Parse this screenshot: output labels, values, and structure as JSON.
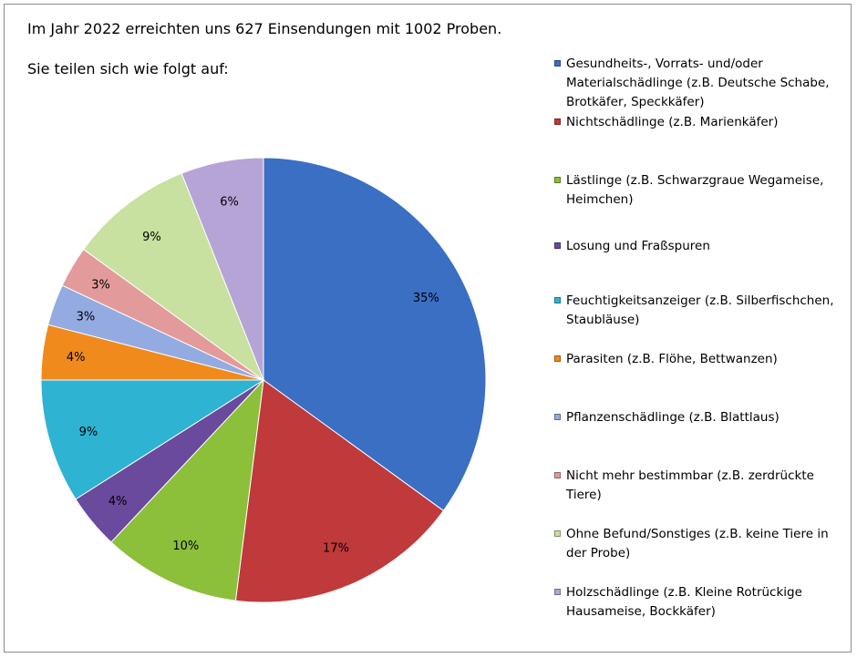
{
  "header": {
    "title": "Im Jahr 2022 erreichten uns 627 Einsendungen mit 1002 Proben.",
    "subtitle": "Sie teilen sich wie folgt auf:"
  },
  "chart_data": {
    "type": "pie",
    "title": "Im Jahr 2022 erreichten uns 627 Einsendungen mit 1002 Proben.",
    "legend_position": "right",
    "start_angle_deg": 0,
    "direction": "clockwise",
    "slices": [
      {
        "label": "Gesundheits-, Vorrats- und/oder Materialschädlinge (z.B. Deutsche Schabe, Brotkäfer, Speckkäfer)",
        "value": 35,
        "value_label": "35%",
        "color": "#3a6fc4"
      },
      {
        "label": "Nichtschädlinge (z.B. Marienkäfer)",
        "value": 17,
        "value_label": "17%",
        "color": "#c0393b"
      },
      {
        "label": "Lästlinge (z.B. Schwarzgraue Wegameise, Heimchen)",
        "value": 10,
        "value_label": "10%",
        "color": "#8cbf3a"
      },
      {
        "label": "Losung und Fraßspuren",
        "value": 4,
        "value_label": "4%",
        "color": "#6a4a9c"
      },
      {
        "label": "Feuchtigkeitsanzeiger (z.B. Silberfischchen, Staubläuse)",
        "value": 9,
        "value_label": "9%",
        "color": "#2fb3d3"
      },
      {
        "label": "Parasiten (z.B. Flöhe, Bettwanzen)",
        "value": 4,
        "value_label": "4%",
        "color": "#f08a1c"
      },
      {
        "label": "Pflanzenschädlinge (z.B. Blattlaus)",
        "value": 3,
        "value_label": "3%",
        "color": "#93abe0"
      },
      {
        "label": "Nicht mehr bestimmbar (z.B. zerdrückte Tiere)",
        "value": 3,
        "value_label": "3%",
        "color": "#e39a9a"
      },
      {
        "label": "Ohne Befund/Sonstiges (z.B. keine Tiere in der Probe)",
        "value": 9,
        "value_label": "9%",
        "color": "#c8e0a0"
      },
      {
        "label": "Holzschädlinge (z.B. Kleine Rotrückige Hausameise, Bockkäfer)",
        "value": 6,
        "value_label": "6%",
        "color": "#b6a4d6"
      }
    ]
  }
}
